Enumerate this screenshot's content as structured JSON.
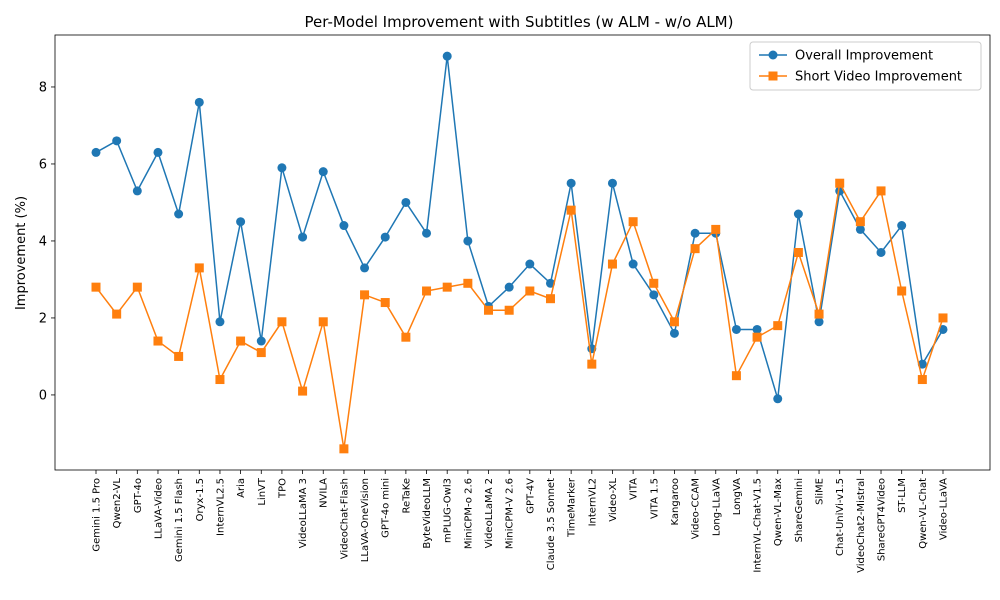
{
  "chart_data": {
    "type": "line",
    "title": "Per-Model Improvement with Subtitles (w ALM - w/o ALM)",
    "xlabel": "",
    "ylabel": "Improvement (%)",
    "ylim": [
      -1.95,
      9.35
    ],
    "yticks": [
      0,
      2,
      4,
      6,
      8
    ],
    "grid": false,
    "legend_position": "top-right",
    "categories": [
      "Gemini 1.5 Pro",
      "Qwen2-VL",
      "GPT-4o",
      "LLaVA-Video",
      "Gemini 1.5 Flash",
      "Oryx-1.5",
      "InternVL2.5",
      "Aria",
      "LinVT",
      "TPO",
      "VideoLLaMA 3",
      "NVILA",
      "VideoChat-Flash",
      "LLaVA-OneVision",
      "GPT-4o mini",
      "ReTaKe",
      "ByteVideoLLM",
      "mPLUG-Owl3",
      "MiniCPM-o 2.6",
      "VideoLLaMA 2",
      "MiniCPM-V 2.6",
      "GPT-4V",
      "Claude 3.5 Sonnet",
      "TimeMarker",
      "InternVL2",
      "Video-XL",
      "VITA",
      "VITA 1.5",
      "Kangaroo",
      "Video-CCAM",
      "Long-LLaVA",
      "LongVA",
      "InternVL-Chat-V1.5",
      "Qwen-VL-Max",
      "ShareGemini",
      "SliME",
      "Chat-UniVi-v1.5",
      "VideoChat2-Mistral",
      "ShareGPT4Video",
      "ST-LLM",
      "Qwen-VL-Chat",
      "Video-LLaVA"
    ],
    "series": [
      {
        "name": "Overall Improvement",
        "color": "#1f77b4",
        "marker": "circle",
        "values": [
          6.3,
          6.6,
          5.3,
          6.3,
          4.7,
          7.6,
          1.9,
          4.5,
          1.4,
          5.9,
          4.1,
          5.8,
          4.4,
          3.3,
          4.1,
          5.0,
          4.2,
          8.8,
          4.0,
          2.3,
          2.8,
          3.4,
          2.9,
          5.5,
          1.2,
          5.5,
          3.4,
          2.6,
          1.6,
          4.2,
          4.2,
          1.7,
          1.7,
          -0.1,
          4.7,
          1.9,
          5.3,
          4.3,
          3.7,
          4.4,
          0.8,
          1.7
        ]
      },
      {
        "name": "Short Video Improvement",
        "color": "#ff7f0e",
        "marker": "square",
        "values": [
          2.8,
          2.1,
          2.8,
          1.4,
          1.0,
          3.3,
          0.4,
          1.4,
          1.1,
          1.9,
          0.1,
          1.9,
          -1.4,
          2.6,
          2.4,
          1.5,
          2.7,
          2.8,
          2.9,
          2.2,
          2.2,
          2.7,
          2.5,
          4.8,
          0.8,
          3.4,
          4.5,
          2.9,
          1.9,
          3.8,
          4.3,
          0.5,
          1.5,
          1.8,
          3.7,
          2.1,
          5.5,
          4.5,
          5.3,
          2.7,
          0.4,
          2.0
        ]
      }
    ]
  }
}
